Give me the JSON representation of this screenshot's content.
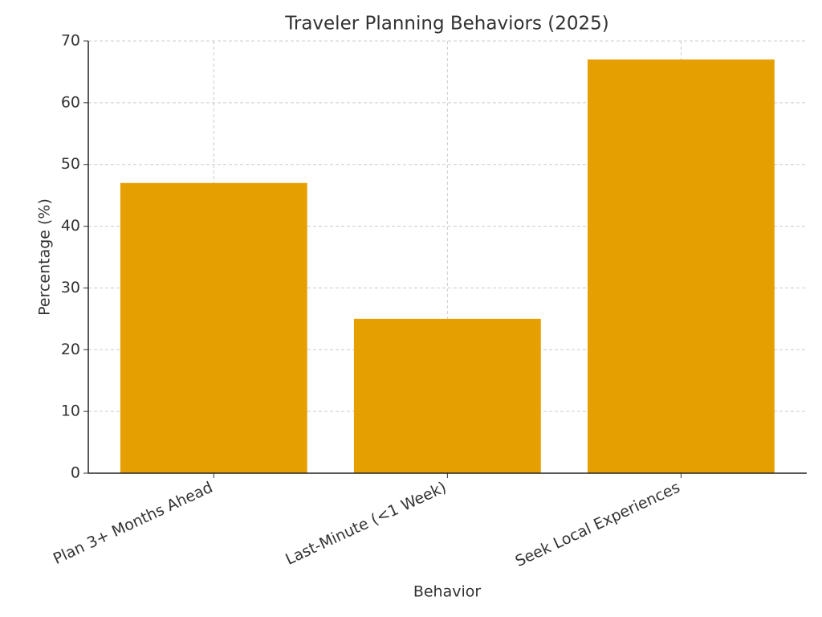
{
  "chart_data": {
    "type": "bar",
    "title": "Traveler Planning Behaviors (2025)",
    "x_label": "Behavior",
    "y_label": "Percentage (%)",
    "categories": [
      "Plan 3+ Months Ahead",
      "Last-Minute (<1 Week)",
      "Seek Local Experiences"
    ],
    "values": [
      47,
      25,
      67
    ],
    "color": "#e69f00",
    "ylim": [
      0,
      70
    ],
    "yticks": [
      0,
      10,
      20,
      30,
      40,
      50,
      60,
      70
    ],
    "grid": true
  }
}
